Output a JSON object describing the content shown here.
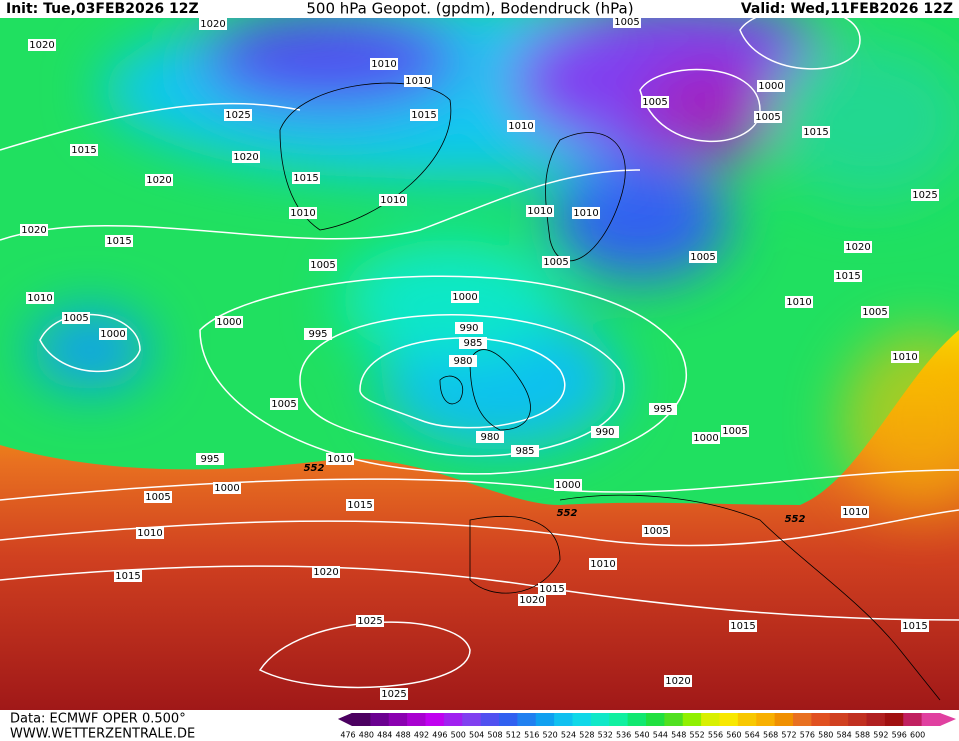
{
  "header": {
    "init": "Init: Tue,03FEB2026 12Z",
    "title": "500 hPa Geopot. (gpdm), Bodendruck (hPa)",
    "valid": "Valid: Wed,11FEB2026 12Z"
  },
  "footer": {
    "source": "Data: ECMWF OPER 0.500°",
    "site": "WWW.WETTERZENTRALE.DE"
  },
  "colorbar": {
    "levels": [
      476,
      480,
      484,
      488,
      492,
      496,
      500,
      504,
      508,
      512,
      516,
      520,
      524,
      528,
      532,
      536,
      540,
      544,
      548,
      552,
      556,
      560,
      564,
      568,
      572,
      576,
      580,
      584,
      588,
      592,
      596,
      600
    ],
    "colors": [
      "#4b0060",
      "#6a0090",
      "#8a00b0",
      "#a800d0",
      "#c000f0",
      "#a020f0",
      "#8040f0",
      "#5050f0",
      "#3060f0",
      "#2080f0",
      "#10a0f0",
      "#10c0f0",
      "#10d8e8",
      "#10e8c8",
      "#10f0a0",
      "#10e870",
      "#20e040",
      "#50e020",
      "#90f000",
      "#d8f000",
      "#f8e800",
      "#f8c800",
      "#f8b000",
      "#f09000",
      "#e87020",
      "#e05020",
      "#d04020",
      "#c03020",
      "#b02020",
      "#a01010",
      "#c02060",
      "#e040a0"
    ]
  },
  "isobar_labels": [
    1020,
    1020,
    1010,
    1010,
    1025,
    1015,
    1010,
    1005,
    1005,
    1000,
    1005,
    1015,
    1015,
    1020,
    1020,
    1015,
    1010,
    1010,
    1010,
    1010,
    1025,
    1020,
    1015,
    1020,
    1005,
    1005,
    1005,
    1015,
    1010,
    1000,
    1010,
    1005,
    1005,
    1000,
    1000,
    995,
    990,
    985,
    980,
    1010,
    1005,
    995,
    980,
    990,
    1000,
    1005,
    985,
    995,
    1010,
    552,
    1000,
    1005,
    1000,
    1015,
    552,
    1010,
    1005,
    552,
    1010,
    1010,
    1015,
    1020,
    1015,
    1020,
    1025,
    1015,
    1015,
    1020,
    1025
  ]
}
